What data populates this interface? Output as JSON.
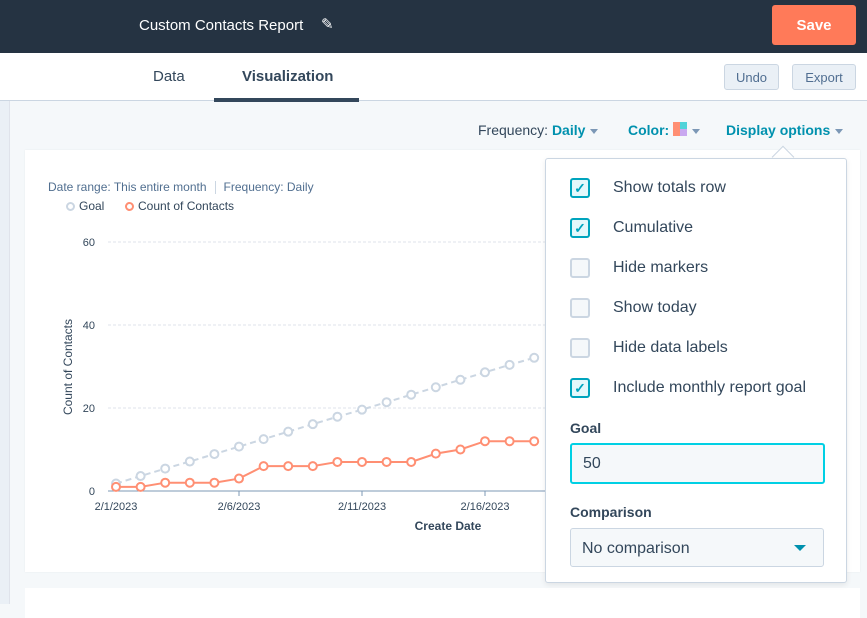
{
  "header": {
    "title": "Custom Contacts Report",
    "save_label": "Save"
  },
  "tabs": [
    {
      "label": "Data",
      "active": false
    },
    {
      "label": "Visualization",
      "active": true
    }
  ],
  "toolbar": {
    "undo": "Undo",
    "export": "Export"
  },
  "options": {
    "frequency_label": "Frequency:",
    "frequency_value": "Daily",
    "color_label": "Color:",
    "color_swatch": [
      "#ff8f73",
      "#51d3d9",
      "#c9a8f0"
    ],
    "display_options": "Display options"
  },
  "chart_meta": {
    "date_range": "Date range: This entire month",
    "frequency": "Frequency: Daily"
  },
  "display_menu": {
    "checkboxes": [
      {
        "label": "Show totals row",
        "checked": true
      },
      {
        "label": "Cumulative",
        "checked": true
      },
      {
        "label": "Hide markers",
        "checked": false
      },
      {
        "label": "Show today",
        "checked": false
      },
      {
        "label": "Hide data labels",
        "checked": false
      },
      {
        "label": "Include monthly report goal",
        "checked": true
      }
    ],
    "goal_label": "Goal",
    "goal_value": "50",
    "comparison_label": "Comparison",
    "comparison_value": "No comparison"
  },
  "chart_data": {
    "type": "line",
    "xlabel": "Create Date",
    "ylabel": "Count of Contacts",
    "ylim": [
      0,
      60
    ],
    "yticks": [
      "0",
      "20",
      "40",
      "60"
    ],
    "xticks": [
      "2/1/2023",
      "2/6/2023",
      "2/11/2023",
      "2/16/2023"
    ],
    "x": [
      "2/1/2023",
      "2/2/2023",
      "2/3/2023",
      "2/4/2023",
      "2/5/2023",
      "2/6/2023",
      "2/7/2023",
      "2/8/2023",
      "2/9/2023",
      "2/10/2023",
      "2/11/2023",
      "2/12/2023",
      "2/13/2023",
      "2/14/2023",
      "2/15/2023",
      "2/16/2023",
      "2/17/2023",
      "2/18/2023"
    ],
    "grid": true,
    "legend": "top-left",
    "series": [
      {
        "name": "Goal",
        "color": "#cbd6e2",
        "dashed": true,
        "values": [
          1.8,
          3.6,
          5.4,
          7.1,
          8.9,
          10.7,
          12.5,
          14.3,
          16.1,
          17.9,
          19.6,
          21.4,
          23.2,
          25.0,
          26.8,
          28.6,
          30.4,
          32.1
        ]
      },
      {
        "name": "Count of Contacts",
        "color": "#ff8f73",
        "dashed": false,
        "values": [
          1,
          1,
          2,
          2,
          2,
          3,
          6,
          6,
          6,
          7,
          7,
          7,
          7,
          9,
          10,
          12,
          12,
          12
        ]
      }
    ]
  }
}
